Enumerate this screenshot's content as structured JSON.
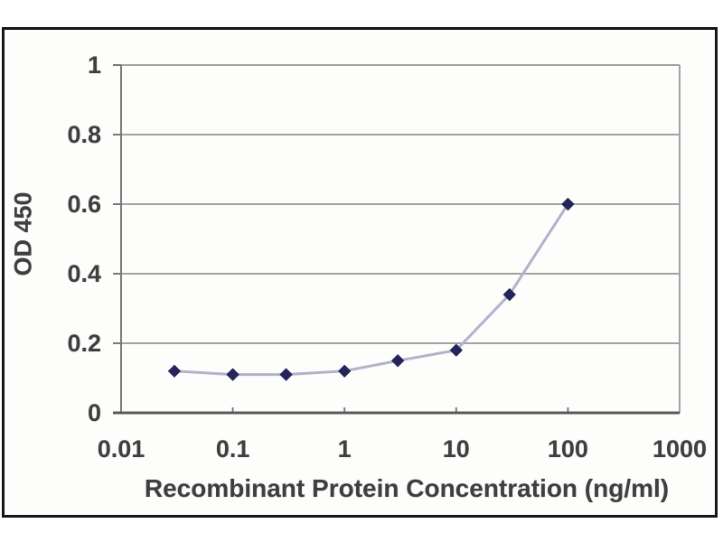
{
  "figure": {
    "background": "#ffffff",
    "frame_border_color": "#161616"
  },
  "chart_data": {
    "type": "line",
    "title": "",
    "xlabel": "Recombinant Protein Concentration (ng/ml)",
    "ylabel": "OD 450",
    "x_scale": "log",
    "xlim": [
      0.01,
      1000
    ],
    "ylim": [
      0,
      1
    ],
    "xticks": [
      "0.01",
      "0.1",
      "1",
      "10",
      "100",
      "1000"
    ],
    "xtick_values": [
      0.01,
      0.1,
      1,
      10,
      100,
      1000
    ],
    "yticks": [
      "1",
      "0.8",
      "0.6",
      "0.4",
      "0.2",
      "0"
    ],
    "ytick_values": [
      1,
      0.8,
      0.6,
      0.4,
      0.2,
      0
    ],
    "grid": "horizontal",
    "legend_position": "none",
    "series": [
      {
        "name": "OD 450",
        "marker": "diamond",
        "x": [
          0.03,
          0.1,
          0.3,
          1,
          3,
          10,
          30,
          100
        ],
        "y": [
          0.12,
          0.11,
          0.11,
          0.12,
          0.15,
          0.18,
          0.34,
          0.6
        ]
      }
    ],
    "colors": {
      "line": "#b1b4c8",
      "marker": "#25255c",
      "grid": "#a2a2a2",
      "y_axis": "#7a7a7a",
      "x_axis": "#5a5a5a",
      "text": "#3f3f3f"
    }
  }
}
